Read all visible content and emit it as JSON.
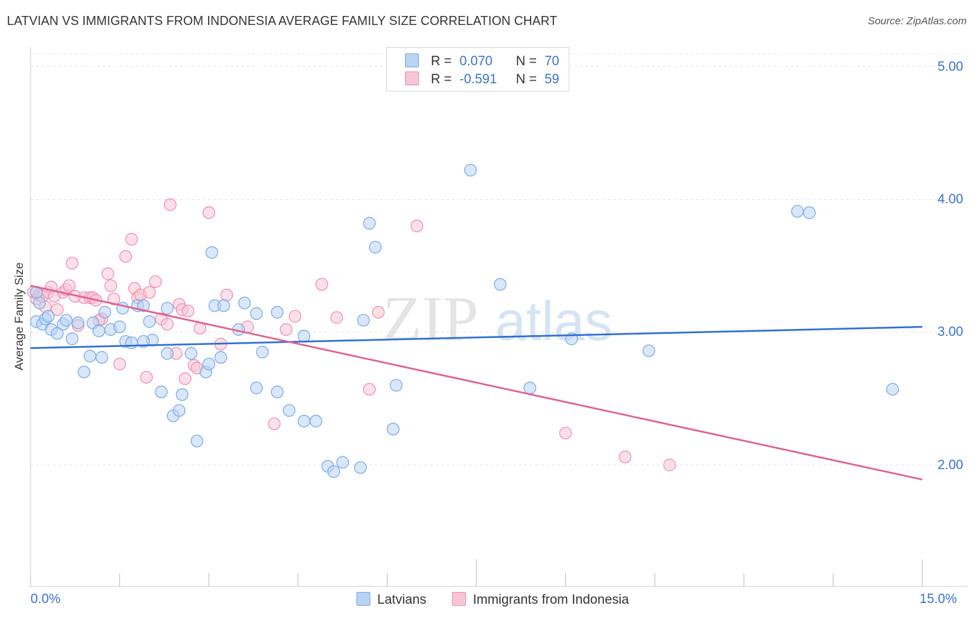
{
  "title": "LATVIAN VS IMMIGRANTS FROM INDONESIA AVERAGE FAMILY SIZE CORRELATION CHART",
  "source": "Source: ZipAtlas.com",
  "colors": {
    "latvians": "#7aaae6",
    "latvians_fill": "#b9d3f3",
    "indonesia": "#ee8fb0",
    "indonesia_fill": "#f7c6d6",
    "latvians_line": "#2f6fcf",
    "indonesia_line": "#e0608f",
    "axis_text": "#3b72c9"
  },
  "legend": {
    "r1_label": "R =",
    "r1_value": "0.070",
    "n1_label": "N =",
    "n1_value": "70",
    "r2_label": "R =",
    "r2_value": "-0.591",
    "n2_label": "N =",
    "n2_value": "59"
  },
  "bottom_legend": {
    "latvians": "Latvians",
    "indonesia": "Immigrants from Indonesia"
  },
  "watermark": {
    "zip": "ZIP",
    "atlas": "atlas"
  },
  "chart_data": {
    "type": "scatter",
    "title": "LATVIAN VS IMMIGRANTS FROM INDONESIA AVERAGE FAMILY SIZE CORRELATION CHART",
    "xlabel": "",
    "ylabel": "Average Family Size",
    "xlim": [
      0,
      15
    ],
    "ylim": [
      1.25,
      5.15
    ],
    "x_tick_labels": [
      "0.0%",
      "15.0%"
    ],
    "y_ticks": [
      2.0,
      3.0,
      4.0,
      5.0
    ],
    "y_tick_labels": [
      "2.00",
      "3.00",
      "4.00",
      "5.00"
    ],
    "grid": "horizontal dashed",
    "legend_position": "top-center",
    "series": [
      {
        "name": "Latvians",
        "trend": [
          [
            0,
            2.88
          ],
          [
            15,
            3.04
          ]
        ],
        "points": [
          [
            0.1,
            3.3
          ],
          [
            0.1,
            3.08
          ],
          [
            0.2,
            3.06
          ],
          [
            0.25,
            3.1
          ],
          [
            0.35,
            3.02
          ],
          [
            0.45,
            2.99
          ],
          [
            0.55,
            3.06
          ],
          [
            0.6,
            3.09
          ],
          [
            0.7,
            2.95
          ],
          [
            0.8,
            3.07
          ],
          [
            0.9,
            2.7
          ],
          [
            1.0,
            2.82
          ],
          [
            1.05,
            3.07
          ],
          [
            1.15,
            3.01
          ],
          [
            1.2,
            2.81
          ],
          [
            1.25,
            3.15
          ],
          [
            1.35,
            3.02
          ],
          [
            1.5,
            3.04
          ],
          [
            1.55,
            3.18
          ],
          [
            1.6,
            2.93
          ],
          [
            1.7,
            2.92
          ],
          [
            1.8,
            3.2
          ],
          [
            1.9,
            3.2
          ],
          [
            2.0,
            3.08
          ],
          [
            2.05,
            2.94
          ],
          [
            2.2,
            2.55
          ],
          [
            2.3,
            3.18
          ],
          [
            2.3,
            2.84
          ],
          [
            2.4,
            2.37
          ],
          [
            2.5,
            2.41
          ],
          [
            2.55,
            2.53
          ],
          [
            2.7,
            2.84
          ],
          [
            2.8,
            2.18
          ],
          [
            2.95,
            2.7
          ],
          [
            3.0,
            2.76
          ],
          [
            3.05,
            3.6
          ],
          [
            3.1,
            3.2
          ],
          [
            3.2,
            2.81
          ],
          [
            3.25,
            3.2
          ],
          [
            3.6,
            3.22
          ],
          [
            3.8,
            3.14
          ],
          [
            3.8,
            2.58
          ],
          [
            3.9,
            2.85
          ],
          [
            4.15,
            2.55
          ],
          [
            4.15,
            3.15
          ],
          [
            4.35,
            2.41
          ],
          [
            4.6,
            2.33
          ],
          [
            4.6,
            2.97
          ],
          [
            4.8,
            2.33
          ],
          [
            5.0,
            1.99
          ],
          [
            5.1,
            1.95
          ],
          [
            5.25,
            2.02
          ],
          [
            5.55,
            1.98
          ],
          [
            5.6,
            3.09
          ],
          [
            5.7,
            3.82
          ],
          [
            5.8,
            3.64
          ],
          [
            6.1,
            2.27
          ],
          [
            6.15,
            2.6
          ],
          [
            7.4,
            4.22
          ],
          [
            7.9,
            3.36
          ],
          [
            8.4,
            2.58
          ],
          [
            9.1,
            2.95
          ],
          [
            10.4,
            2.86
          ],
          [
            12.9,
            3.91
          ],
          [
            13.1,
            3.9
          ],
          [
            14.5,
            2.57
          ],
          [
            0.15,
            3.22
          ],
          [
            0.3,
            3.12
          ],
          [
            1.9,
            2.93
          ],
          [
            3.5,
            3.02
          ]
        ]
      },
      {
        "name": "Immigrants from Indonesia",
        "trend": [
          [
            0,
            3.35
          ],
          [
            15,
            1.89
          ]
        ],
        "points": [
          [
            0.05,
            3.3
          ],
          [
            0.1,
            3.25
          ],
          [
            0.15,
            3.28
          ],
          [
            0.2,
            3.27
          ],
          [
            0.3,
            3.3
          ],
          [
            0.35,
            3.34
          ],
          [
            0.4,
            3.27
          ],
          [
            0.45,
            3.17
          ],
          [
            0.55,
            3.3
          ],
          [
            0.6,
            3.32
          ],
          [
            0.65,
            3.35
          ],
          [
            0.7,
            3.52
          ],
          [
            0.75,
            3.27
          ],
          [
            0.8,
            3.05
          ],
          [
            0.9,
            3.26
          ],
          [
            1.0,
            3.26
          ],
          [
            1.05,
            3.26
          ],
          [
            1.1,
            3.24
          ],
          [
            1.2,
            3.1
          ],
          [
            1.3,
            3.44
          ],
          [
            1.35,
            3.35
          ],
          [
            1.4,
            3.25
          ],
          [
            1.5,
            2.76
          ],
          [
            1.6,
            3.57
          ],
          [
            1.7,
            3.7
          ],
          [
            1.75,
            3.33
          ],
          [
            1.8,
            3.26
          ],
          [
            1.85,
            3.28
          ],
          [
            1.95,
            2.66
          ],
          [
            2.0,
            3.3
          ],
          [
            2.1,
            3.38
          ],
          [
            2.2,
            3.1
          ],
          [
            2.3,
            3.06
          ],
          [
            2.35,
            3.96
          ],
          [
            2.45,
            2.84
          ],
          [
            2.5,
            3.21
          ],
          [
            2.55,
            3.17
          ],
          [
            2.6,
            2.65
          ],
          [
            2.75,
            2.75
          ],
          [
            2.8,
            2.73
          ],
          [
            2.85,
            3.03
          ],
          [
            3.0,
            3.9
          ],
          [
            3.2,
            2.91
          ],
          [
            3.3,
            3.28
          ],
          [
            4.1,
            2.31
          ],
          [
            4.3,
            3.02
          ],
          [
            4.45,
            3.12
          ],
          [
            4.9,
            3.36
          ],
          [
            5.15,
            3.11
          ],
          [
            5.7,
            2.57
          ],
          [
            5.85,
            3.15
          ],
          [
            6.5,
            3.8
          ],
          [
            9.0,
            2.24
          ],
          [
            10.0,
            2.06
          ],
          [
            10.75,
            2.0
          ],
          [
            0.25,
            3.19
          ],
          [
            1.15,
            3.09
          ],
          [
            2.65,
            3.16
          ],
          [
            3.65,
            3.04
          ]
        ]
      }
    ]
  }
}
